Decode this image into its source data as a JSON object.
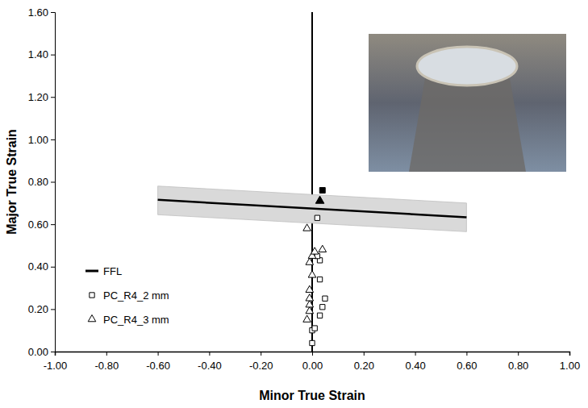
{
  "chart_data": {
    "type": "scatter",
    "x_label": "Minor True Strain",
    "y_label": "Major True Strain",
    "xlim": [
      -1,
      1
    ],
    "ylim": [
      0,
      1.6
    ],
    "xticks": [
      {
        "value": -1,
        "label": "-1.00"
      },
      {
        "value": -0.8,
        "label": "-0.80"
      },
      {
        "value": -0.6,
        "label": "-0.60"
      },
      {
        "value": -0.4,
        "label": "-0.40"
      },
      {
        "value": -0.2,
        "label": "-0.20"
      },
      {
        "value": 0,
        "label": "0.00"
      },
      {
        "value": 0.2,
        "label": "0.20"
      },
      {
        "value": 0.4,
        "label": "0.40"
      },
      {
        "value": 0.6,
        "label": "0.60"
      },
      {
        "value": 0.8,
        "label": "0.80"
      },
      {
        "value": 1,
        "label": "1.00"
      }
    ],
    "yticks": [
      {
        "value": 0,
        "label": "0.00"
      },
      {
        "value": 0.2,
        "label": "0.20"
      },
      {
        "value": 0.4,
        "label": "0.40"
      },
      {
        "value": 0.6,
        "label": "0.60"
      },
      {
        "value": 0.8,
        "label": "0.80"
      },
      {
        "value": 1,
        "label": "1.00"
      },
      {
        "value": 1.2,
        "label": "1.20"
      },
      {
        "value": 1.4,
        "label": "1.40"
      },
      {
        "value": 1.6,
        "label": "1.60"
      }
    ],
    "grid": false,
    "legend": "lower left",
    "series": [
      {
        "name": "FFL",
        "type": "line",
        "color": "#000000",
        "x": [
          -0.6,
          0.6
        ],
        "values": [
          0.715,
          0.633
        ],
        "lower": [
          0.645,
          0.565
        ],
        "upper": [
          0.78,
          0.7
        ]
      },
      {
        "name": "PC_R4_2 mm",
        "type": "scatter",
        "marker": "square",
        "color": "#000000",
        "x": [
          0.0,
          0.0,
          0.01,
          0.03,
          0.04,
          0.05,
          0.03,
          0.03,
          0.02,
          0.02
        ],
        "values": [
          0.04,
          0.1,
          0.11,
          0.17,
          0.21,
          0.25,
          0.34,
          0.43,
          0.45,
          0.63
        ]
      },
      {
        "name": "PC_R4_3 mm",
        "type": "scatter",
        "marker": "triangle",
        "color": "#000000",
        "x": [
          -0.02,
          -0.01,
          -0.01,
          -0.01,
          -0.01,
          0.0,
          -0.01,
          0.0,
          0.01,
          0.04,
          -0.02
        ],
        "values": [
          0.15,
          0.19,
          0.22,
          0.25,
          0.29,
          0.36,
          0.42,
          0.45,
          0.47,
          0.48,
          0.58
        ]
      },
      {
        "type": "scatter",
        "marker": "filled-square",
        "color": "#000000",
        "x": [
          0.04
        ],
        "values": [
          0.76
        ]
      },
      {
        "type": "scatter",
        "marker": "filled-triangle",
        "color": "#000000",
        "x": [
          0.03
        ],
        "values": [
          0.71
        ]
      }
    ]
  }
}
